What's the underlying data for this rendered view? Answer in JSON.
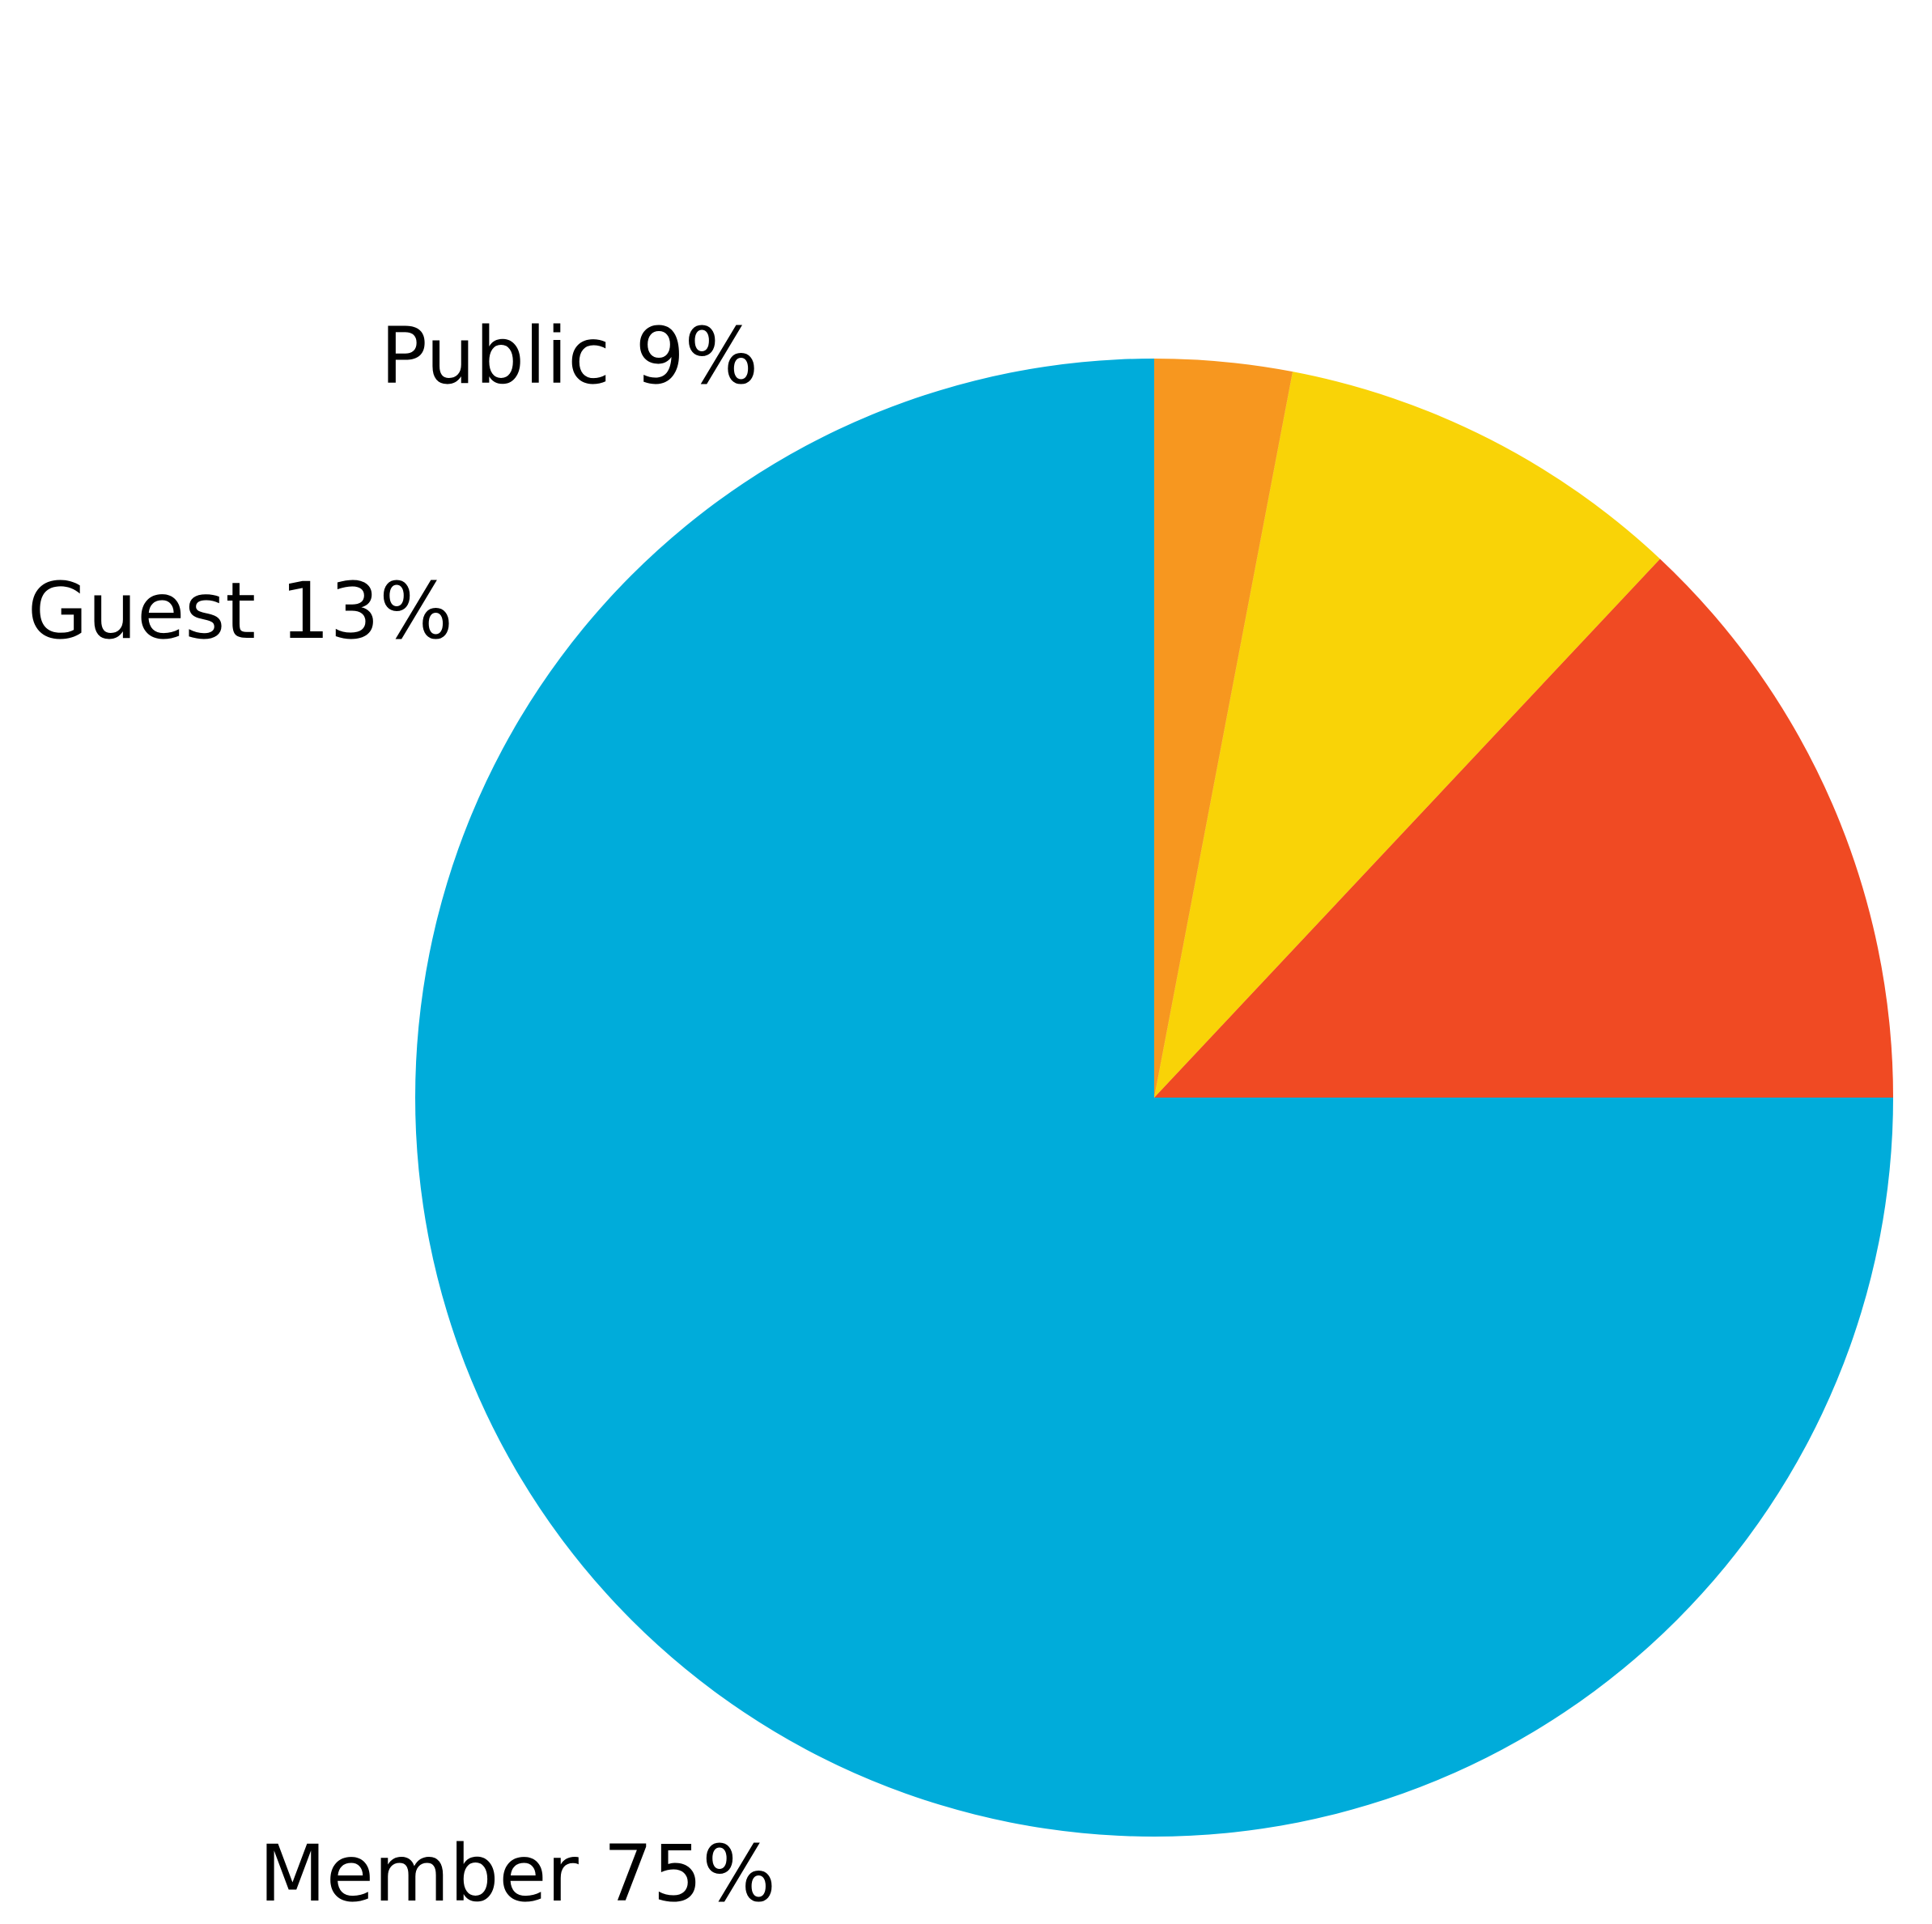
{
  "chart_data": {
    "type": "pie",
    "title": "",
    "start_angle_deg": 0,
    "direction": "counterclockwise",
    "slices": [
      {
        "key": "member",
        "value": 75,
        "label": "Member 75%",
        "color": "#00ACDA"
      },
      {
        "key": "guest",
        "value": 13,
        "label": "Guest 13%",
        "color": "#F04A23"
      },
      {
        "key": "public",
        "value": 9,
        "label": "Public 9%",
        "color": "#F9D307"
      },
      {
        "key": "other",
        "value": 3,
        "label": "",
        "color": "#F7971F"
      }
    ]
  }
}
